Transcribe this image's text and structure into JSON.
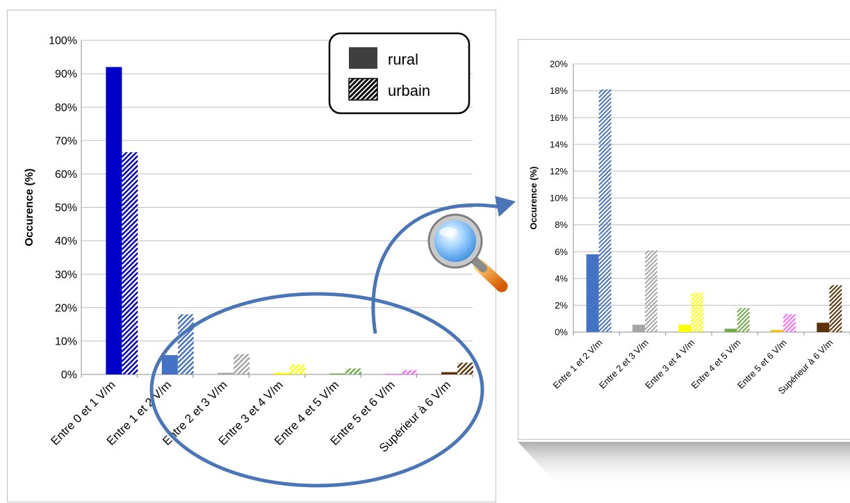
{
  "chart_data": [
    {
      "type": "bar",
      "ylabel": "Occurence (%)",
      "ylim": [
        0,
        100
      ],
      "yticks": [
        "0%",
        "10%",
        "20%",
        "30%",
        "40%",
        "50%",
        "60%",
        "70%",
        "80%",
        "90%",
        "100%"
      ],
      "grid": true,
      "categories": [
        "Entre 0 et 1 V/m",
        "Entre 1 et 2 V/m",
        "Entre 2 et 3 V/m",
        "Entre 3 et 4 V/m",
        "Entre 4 et 5 V/m",
        "Entre 5 et 6 V/m",
        "Supérieur à 6 V/m"
      ],
      "category_colors": [
        "#0000c8",
        "#4472c4",
        "#a6a6a6",
        "#ffff00",
        "#70ad47",
        "#ff66ff",
        "#5c3307"
      ],
      "series": [
        {
          "name": "rural",
          "pattern": "solid",
          "values": [
            92,
            5.8,
            0.5,
            0.5,
            0.3,
            0.2,
            0.7
          ]
        },
        {
          "name": "urbain",
          "pattern": "hatched",
          "values": [
            66.5,
            18,
            6.1,
            3.0,
            1.8,
            1.3,
            3.5
          ]
        }
      ],
      "legend": {
        "placement": "top-right",
        "entries": [
          "rural",
          "urbain"
        ]
      }
    },
    {
      "type": "bar",
      "ylabel": "Occurence (%)",
      "ylim": [
        0,
        20
      ],
      "yticks": [
        "0%",
        "2%",
        "4%",
        "6%",
        "8%",
        "10%",
        "12%",
        "14%",
        "16%",
        "18%",
        "20%"
      ],
      "grid": true,
      "categories": [
        "Entre 1 et 2 V/m",
        "Entre 2 et 3 V/m",
        "Entre 3 et 4 V/m",
        "Entre 4 et 5 V/m",
        "Entre 5 et 6 V/m",
        "Supérieur à 6 V/m"
      ],
      "category_colors": [
        "#4472c4",
        "#a6a6a6",
        "#ffff00",
        "#70ad47",
        "#ffc000",
        "#5c3307"
      ],
      "hatch_colors": [
        "#4472c4",
        "#a6a6a6",
        "#ffff00",
        "#70ad47",
        "#ff66ff",
        "#5c3307"
      ],
      "series": [
        {
          "name": "rural",
          "pattern": "solid",
          "values": [
            5.8,
            0.55,
            0.55,
            0.25,
            0.15,
            0.7
          ]
        },
        {
          "name": "urbain",
          "pattern": "hatched",
          "values": [
            18.1,
            6.1,
            2.95,
            1.8,
            1.35,
            3.5
          ]
        }
      ]
    }
  ],
  "icons": {
    "zoom": "magnifier-icon",
    "arrow": "curved-arrow"
  },
  "colors": {
    "highlight_ellipse": "#4a76b8",
    "frame": "#c8c8c8"
  }
}
